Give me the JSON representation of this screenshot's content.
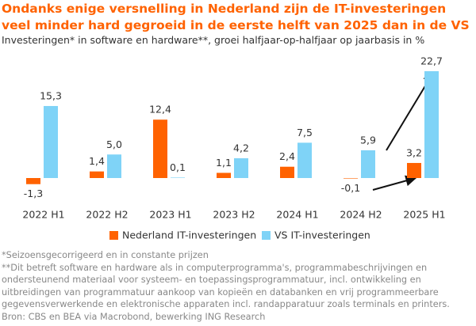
{
  "chart_data": {
    "type": "bar",
    "title": "Ondanks enige versnelling in Nederland zijn de IT-investeringen veel minder hard gegroeid in de eerste helft van 2025 dan in de VS",
    "subtitle": "Investeringen* in software en hardware**, groei halfjaar-op-halfjaar op jaarbasis in %",
    "categories": [
      "2022 H1",
      "2022 H2",
      "2023 H1",
      "2023 H2",
      "2024 H1",
      "2024 H2",
      "2025 H1"
    ],
    "series": [
      {
        "name": "Nederland IT-investeringen",
        "color": "#ff6200",
        "values": [
          -1.3,
          1.4,
          12.4,
          1.1,
          2.4,
          -0.1,
          3.2
        ],
        "value_labels": [
          "-1,3",
          "1,4",
          "12,4",
          "1,1",
          "2,4",
          "-0,1",
          "3,2"
        ]
      },
      {
        "name": "VS IT-investeringen",
        "color": "#7fd3f7",
        "values": [
          15.3,
          5.0,
          0.1,
          4.2,
          7.5,
          5.9,
          22.7
        ],
        "value_labels": [
          "15,3",
          "5,0",
          "0,1",
          "4,2",
          "7,5",
          "5,9",
          "22,7"
        ]
      }
    ],
    "notes": [
      "*Seizoensgecorrigeerd en in constante prijzen",
      "**Dit betreft software en hardware als in computerprogramma's, programmabeschrijvingen en ondersteunend materiaal voor systeem- en toepassingsprogrammatuur, incl. ontwikkeling en uitbreidingen van programmatuur aankoop van kopieën en databanken en vrij programmeerbare gegevensverwerkende en elektronische apparaten incl. randapparatuur zoals terminals en printers.",
      "Bron: CBS en BEA via Macrobond, bewerking ING Research"
    ]
  }
}
